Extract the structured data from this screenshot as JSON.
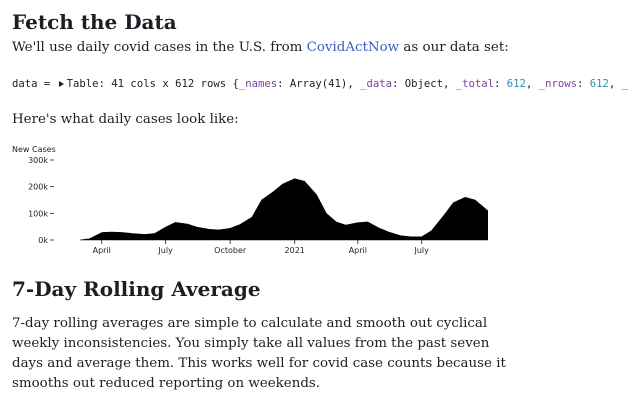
{
  "fetch_section": {
    "heading": "Fetch the Data",
    "intro_before": "We'll use daily covid cases in the U.S. from ",
    "intro_link": "CovidActNow",
    "intro_after": " as our data set:"
  },
  "data_cell": {
    "prefix": "data = ",
    "table_label": "Table: 41 cols x 612 rows",
    "open_brace": " {",
    "k1": "_names",
    "v1": ": Array(41), ",
    "k2": "_data",
    "v2": ": Object, ",
    "k3": "_total",
    "sep3": ": ",
    "n3": "612",
    "comma3": ", ",
    "k4": "_nrows",
    "sep4": ": ",
    "n4": "612",
    "comma4": ", ",
    "k5": "_"
  },
  "cases_intro": "Here's what daily cases look like:",
  "chart_data": {
    "type": "area",
    "ylabel": "New Cases",
    "yticks": [
      {
        "value": 0,
        "label": "0k"
      },
      {
        "value": 100000,
        "label": "100k"
      },
      {
        "value": 200000,
        "label": "200k"
      },
      {
        "value": 300000,
        "label": "300k"
      }
    ],
    "ylim": [
      0,
      300000
    ],
    "xlim": [
      "2020-03-01",
      "2021-11-01"
    ],
    "xticks": [
      {
        "date": "2020-04-01",
        "label": "April"
      },
      {
        "date": "2020-07-01",
        "label": "July"
      },
      {
        "date": "2020-10-01",
        "label": "October"
      },
      {
        "date": "2021-01-01",
        "label": "2021"
      },
      {
        "date": "2021-04-01",
        "label": "April"
      },
      {
        "date": "2021-07-01",
        "label": "July"
      }
    ],
    "series_dates": [
      "2020-03-01",
      "2020-03-15",
      "2020-04-01",
      "2020-04-15",
      "2020-05-01",
      "2020-05-15",
      "2020-06-01",
      "2020-06-15",
      "2020-07-01",
      "2020-07-15",
      "2020-08-01",
      "2020-08-15",
      "2020-09-01",
      "2020-09-15",
      "2020-10-01",
      "2020-10-15",
      "2020-11-01",
      "2020-11-15",
      "2020-12-01",
      "2020-12-15",
      "2021-01-01",
      "2021-01-15",
      "2021-02-01",
      "2021-02-15",
      "2021-03-01",
      "2021-03-15",
      "2021-04-01",
      "2021-04-15",
      "2021-05-01",
      "2021-05-15",
      "2021-06-01",
      "2021-06-15",
      "2021-07-01",
      "2021-07-15",
      "2021-08-01",
      "2021-08-15",
      "2021-09-01",
      "2021-09-15",
      "2021-10-03"
    ],
    "series_values": [
      0,
      5000,
      28000,
      30000,
      28000,
      24000,
      21000,
      24000,
      48000,
      66000,
      60000,
      48000,
      40000,
      38000,
      44000,
      58000,
      85000,
      150000,
      180000,
      210000,
      230000,
      220000,
      170000,
      100000,
      68000,
      56000,
      65000,
      68000,
      45000,
      30000,
      16000,
      12000,
      12000,
      35000,
      90000,
      140000,
      160000,
      150000,
      110000
    ]
  },
  "rolling_section": {
    "heading": "7-Day Rolling Average",
    "body": "7-day rolling averages are simple to calculate and smooth out cyclical weekly inconsistencies. You simply take all values from the past seven days and average them. This works well for covid case counts because it smooths out reduced reporting on weekends."
  }
}
